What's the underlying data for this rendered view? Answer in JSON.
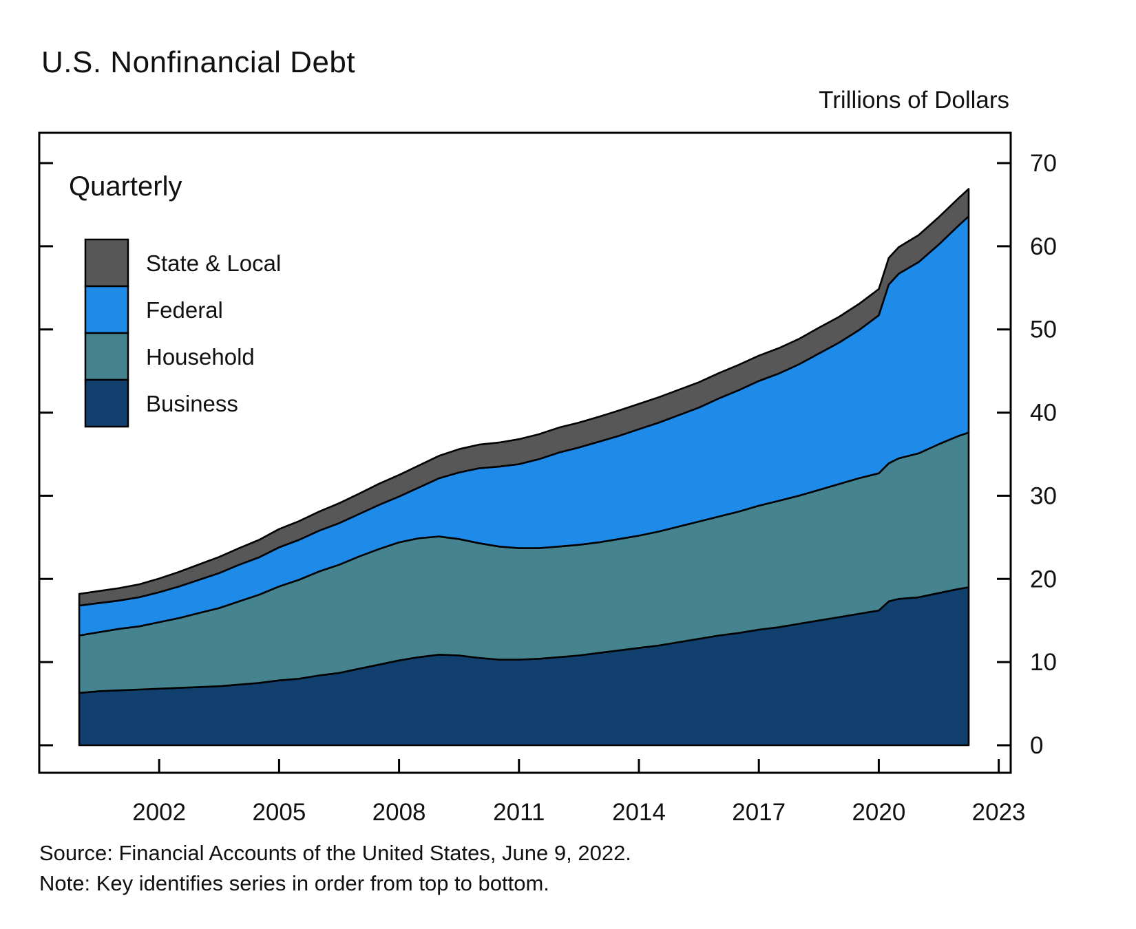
{
  "header": {
    "title": "U.S. Nonfinancial Debt",
    "units": "Trillions of Dollars"
  },
  "plot": {
    "frequency_label": "Quarterly"
  },
  "legend": {
    "items": [
      {
        "label": "State & Local",
        "color": "#575757"
      },
      {
        "label": "Federal",
        "color": "#1f8be8"
      },
      {
        "label": "Household",
        "color": "#45848f"
      },
      {
        "label": "Business",
        "color": "#11406f"
      }
    ]
  },
  "footer": {
    "source": "Source: Financial Accounts of the United States, June 9, 2022.",
    "note": "Note: Key identifies series in order from top to bottom."
  },
  "chart_data": {
    "type": "area",
    "stacked": true,
    "title": "U.S. Nonfinancial Debt",
    "ylabel": "Trillions of Dollars",
    "frequency": "Quarterly",
    "legend_position": "upper-left",
    "grid": false,
    "xlim": [
      1999,
      2023.3
    ],
    "ylim": [
      0,
      70
    ],
    "x_ticks": [
      2002,
      2005,
      2008,
      2011,
      2014,
      2017,
      2020,
      2023
    ],
    "y_ticks": [
      0,
      10,
      20,
      30,
      40,
      50,
      60,
      70
    ],
    "stack_order_bottom_to_top": [
      "Business",
      "Household",
      "Federal",
      "State & Local"
    ],
    "x": [
      2000,
      2000.5,
      2001,
      2001.5,
      2002,
      2002.5,
      2003,
      2003.5,
      2004,
      2004.5,
      2005,
      2005.5,
      2006,
      2006.5,
      2007,
      2007.5,
      2008,
      2008.5,
      2009,
      2009.5,
      2010,
      2010.5,
      2011,
      2011.5,
      2012,
      2012.5,
      2013,
      2013.5,
      2014,
      2014.5,
      2015,
      2015.5,
      2016,
      2016.5,
      2017,
      2017.5,
      2018,
      2018.5,
      2019,
      2019.5,
      2020,
      2020.25,
      2020.5,
      2021,
      2021.5,
      2022,
      2022.25
    ],
    "series": [
      {
        "name": "Business",
        "color": "#11406f",
        "values": [
          6.3,
          6.5,
          6.6,
          6.7,
          6.8,
          6.9,
          7.0,
          7.1,
          7.3,
          7.5,
          7.8,
          8.0,
          8.4,
          8.7,
          9.2,
          9.7,
          10.2,
          10.6,
          10.9,
          10.8,
          10.5,
          10.3,
          10.3,
          10.4,
          10.6,
          10.8,
          11.1,
          11.4,
          11.7,
          12.0,
          12.4,
          12.8,
          13.2,
          13.5,
          13.9,
          14.2,
          14.6,
          15.0,
          15.4,
          15.8,
          16.2,
          17.3,
          17.6,
          17.8,
          18.3,
          18.8,
          19.0
        ]
      },
      {
        "name": "Household",
        "color": "#45848f",
        "values": [
          6.9,
          7.1,
          7.4,
          7.6,
          8.0,
          8.4,
          8.9,
          9.4,
          10.0,
          10.6,
          11.3,
          11.9,
          12.5,
          13.0,
          13.5,
          13.9,
          14.2,
          14.3,
          14.2,
          14.0,
          13.8,
          13.6,
          13.4,
          13.3,
          13.3,
          13.3,
          13.3,
          13.4,
          13.5,
          13.7,
          13.9,
          14.1,
          14.3,
          14.6,
          14.9,
          15.2,
          15.4,
          15.7,
          16.0,
          16.3,
          16.5,
          16.6,
          16.9,
          17.3,
          17.9,
          18.4,
          18.6
        ]
      },
      {
        "name": "Federal",
        "color": "#1f8be8",
        "values": [
          3.6,
          3.5,
          3.4,
          3.5,
          3.6,
          3.8,
          4.0,
          4.2,
          4.4,
          4.5,
          4.7,
          4.8,
          4.9,
          5.0,
          5.1,
          5.3,
          5.5,
          6.1,
          7.0,
          8.0,
          9.0,
          9.6,
          10.1,
          10.7,
          11.3,
          11.7,
          12.1,
          12.4,
          12.8,
          13.1,
          13.4,
          13.7,
          14.2,
          14.6,
          15.0,
          15.3,
          15.8,
          16.4,
          17.0,
          17.8,
          19.0,
          21.5,
          22.2,
          23.0,
          24.0,
          25.3,
          26.0
        ]
      },
      {
        "name": "State & Local",
        "color": "#575757",
        "values": [
          1.4,
          1.45,
          1.5,
          1.55,
          1.65,
          1.75,
          1.85,
          1.95,
          2.0,
          2.1,
          2.2,
          2.25,
          2.3,
          2.4,
          2.45,
          2.55,
          2.6,
          2.65,
          2.7,
          2.8,
          2.85,
          2.9,
          3.0,
          3.0,
          3.0,
          3.0,
          3.0,
          3.05,
          3.05,
          3.05,
          3.05,
          3.05,
          3.05,
          3.05,
          3.05,
          3.05,
          3.05,
          3.1,
          3.1,
          3.15,
          3.15,
          3.2,
          3.2,
          3.25,
          3.3,
          3.3,
          3.3
        ]
      }
    ]
  }
}
